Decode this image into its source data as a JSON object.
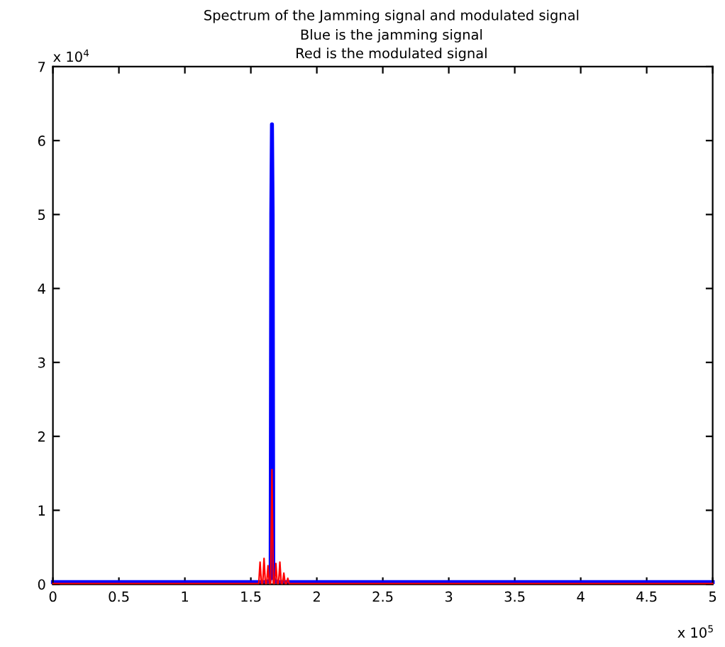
{
  "chart_data": {
    "type": "line",
    "title": "Spectrum of the Jamming signal and modulated signal",
    "subtitle": "Blue is the jamming signal\nRed is the modulated signal",
    "xlim": [
      0,
      5
    ],
    "xticks": [
      0,
      0.5,
      1,
      1.5,
      2,
      2.5,
      3,
      3.5,
      4,
      4.5,
      5
    ],
    "ylim": [
      0,
      7
    ],
    "yticks": [
      0,
      1,
      2,
      3,
      4,
      5,
      6,
      7
    ],
    "annotations": [
      "x 10$^{4}$",
      "x 10$^{5}$"
    ],
    "grid": false,
    "legend": false,
    "series": [
      {
        "color": "#0000ff",
        "x": [
          0,
          1.6,
          1.64,
          1.65,
          1.655,
          1.66,
          1.665,
          1.67,
          1.68,
          1.72,
          5
        ],
        "values": [
          0.03,
          0.03,
          0.04,
          0.1,
          5,
          6.22,
          5,
          0.1,
          0.04,
          0.03,
          0.03
        ]
      },
      {
        "color": "#ff0000",
        "x": [
          0,
          1.56,
          1.57,
          1.58,
          1.59,
          1.6,
          1.61,
          1.62,
          1.63,
          1.64,
          1.65,
          1.66,
          1.67,
          1.68,
          1.69,
          1.7,
          1.71,
          1.72,
          1.73,
          1.74,
          1.75,
          1.76,
          1.77,
          1.78,
          1.79,
          5
        ],
        "values": [
          0.01,
          0.01,
          0.3,
          0.01,
          0.01,
          0.35,
          0.01,
          0.01,
          0.25,
          0.01,
          0.01,
          1.55,
          0.01,
          0.01,
          0.28,
          0.01,
          0.01,
          0.3,
          0.01,
          0.01,
          0.15,
          0.01,
          0.01,
          0.08,
          0.01,
          0.01
        ]
      }
    ]
  }
}
